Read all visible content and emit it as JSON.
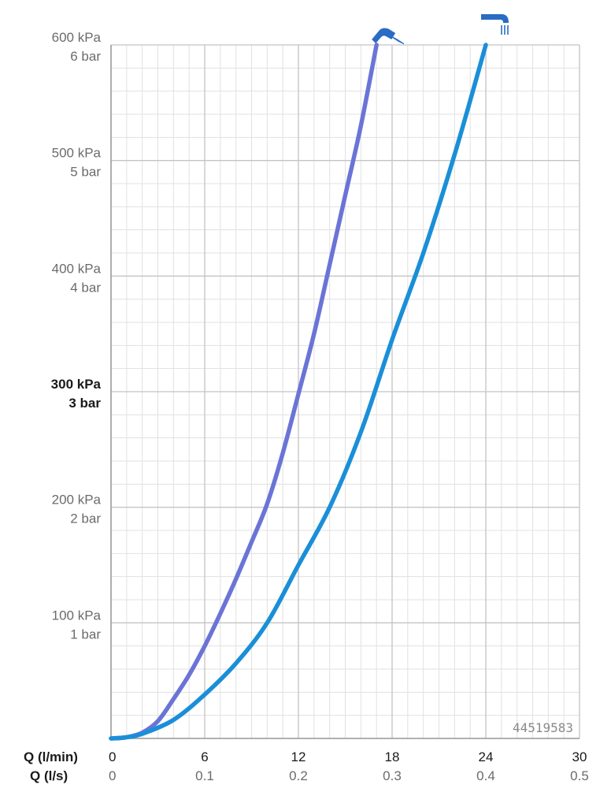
{
  "chart_data": {
    "type": "line",
    "x_axes": [
      {
        "label": "Q (l/min)",
        "ticks": [
          "0",
          "6",
          "12",
          "18",
          "24",
          "30"
        ],
        "range": [
          0,
          30
        ]
      },
      {
        "label": "Q (l/s)",
        "ticks": [
          "0",
          "0.1",
          "0.2",
          "0.3",
          "0.4",
          "0.5"
        ],
        "range": [
          0,
          0.5
        ]
      }
    ],
    "y_axis": {
      "range": [
        0,
        600
      ],
      "unit": "kPa",
      "ticks": [
        {
          "value": 100,
          "kpa": "100 kPa",
          "bar": "1 bar",
          "bold": false
        },
        {
          "value": 200,
          "kpa": "200 kPa",
          "bar": "2 bar",
          "bold": false
        },
        {
          "value": 300,
          "kpa": "300 kPa",
          "bar": "3 bar",
          "bold": true
        },
        {
          "value": 400,
          "kpa": "400 kPa",
          "bar": "4 bar",
          "bold": false
        },
        {
          "value": 500,
          "kpa": "500 kPa",
          "bar": "5 bar",
          "bold": false
        },
        {
          "value": 600,
          "kpa": "600 kPa",
          "bar": "6 bar",
          "bold": false
        }
      ]
    },
    "grid": true,
    "series": [
      {
        "icon": "hand-shower-icon",
        "color": "#6b74d6",
        "points": [
          [
            0,
            0
          ],
          [
            1,
            1
          ],
          [
            2,
            5
          ],
          [
            3,
            15
          ],
          [
            4,
            34
          ],
          [
            5,
            55
          ],
          [
            6,
            80
          ],
          [
            7,
            108
          ],
          [
            8,
            138
          ],
          [
            9,
            170
          ],
          [
            10,
            203
          ],
          [
            11,
            247
          ],
          [
            12,
            298
          ],
          [
            13,
            350
          ],
          [
            14,
            410
          ],
          [
            15,
            470
          ],
          [
            16,
            530
          ],
          [
            17,
            600
          ]
        ]
      },
      {
        "icon": "overhead-shower-icon",
        "color": "#1a8fd8",
        "points": [
          [
            0,
            0
          ],
          [
            1,
            1
          ],
          [
            2,
            4
          ],
          [
            4,
            16
          ],
          [
            6,
            38
          ],
          [
            8,
            65
          ],
          [
            10,
            100
          ],
          [
            12,
            150
          ],
          [
            14,
            200
          ],
          [
            16,
            265
          ],
          [
            18,
            345
          ],
          [
            20,
            420
          ],
          [
            22,
            505
          ],
          [
            24,
            600
          ]
        ]
      }
    ]
  },
  "code_label": "44519583"
}
